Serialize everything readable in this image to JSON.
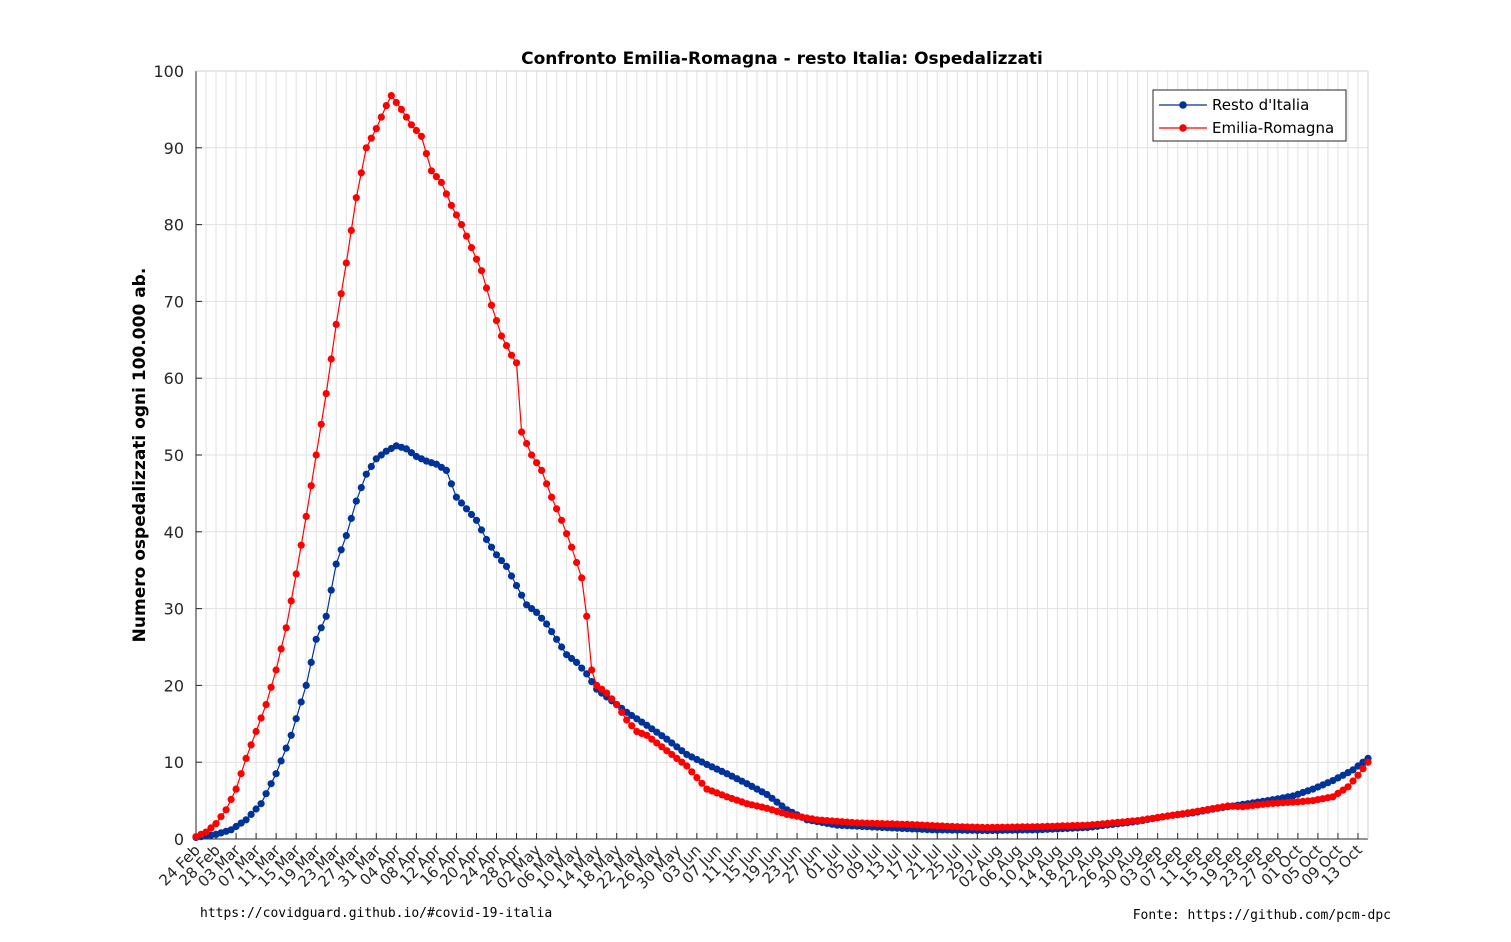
{
  "chart_data": {
    "type": "line",
    "title": "Confronto Emilia-Romagna - resto Italia: Ospedalizzati",
    "xlabel": "",
    "ylabel": "Numero ospedalizzati ogni 100.000 ab.",
    "ylim": [
      0,
      100
    ],
    "yticks": [
      0,
      10,
      20,
      30,
      40,
      50,
      60,
      70,
      80,
      90,
      100
    ],
    "x_start": "2020-02-24",
    "x_end": "2020-10-15",
    "xticks": [
      "24 Feb",
      "28 Feb",
      "03 Mar",
      "07 Mar",
      "11 Mar",
      "15 Mar",
      "19 Mar",
      "23 Mar",
      "27 Mar",
      "31 Mar",
      "04 Apr",
      "08 Apr",
      "12 Apr",
      "16 Apr",
      "20 Apr",
      "24 Apr",
      "28 Apr",
      "02 May",
      "06 May",
      "10 May",
      "14 May",
      "18 May",
      "22 May",
      "26 May",
      "30 May",
      "03 Jun",
      "07 Jun",
      "11 Jun",
      "15 Jun",
      "19 Jun",
      "23 Jun",
      "27 Jun",
      "01 Jul",
      "05 Jul",
      "09 Jul",
      "13 Jul",
      "17 Jul",
      "21 Jul",
      "25 Jul",
      "29 Jul",
      "02 Aug",
      "06 Aug",
      "10 Aug",
      "14 Aug",
      "18 Aug",
      "22 Aug",
      "26 Aug",
      "30 Aug",
      "03 Sep",
      "07 Sep",
      "11 Sep",
      "15 Sep",
      "19 Sep",
      "23 Sep",
      "27 Sep",
      "01 Oct",
      "05 Oct",
      "09 Oct",
      "13 Oct"
    ],
    "grid": true,
    "legend_position": "top-right",
    "series": [
      {
        "name": "Resto d'Italia",
        "color": "#003399",
        "anchors": [
          [
            "2020-02-24",
            0.2
          ],
          [
            "2020-02-28",
            0.6
          ],
          [
            "2020-03-02",
            1.2
          ],
          [
            "2020-03-05",
            2.5
          ],
          [
            "2020-03-08",
            4.6
          ],
          [
            "2020-03-11",
            8.5
          ],
          [
            "2020-03-14",
            13.5
          ],
          [
            "2020-03-17",
            20
          ],
          [
            "2020-03-19",
            26
          ],
          [
            "2020-03-21",
            29
          ],
          [
            "2020-03-23",
            35.8
          ],
          [
            "2020-03-25",
            39.5
          ],
          [
            "2020-03-27",
            44
          ],
          [
            "2020-03-29",
            47.5
          ],
          [
            "2020-03-31",
            49.5
          ],
          [
            "2020-04-02",
            50.5
          ],
          [
            "2020-04-04",
            51.2
          ],
          [
            "2020-04-06",
            50.8
          ],
          [
            "2020-04-08",
            49.8
          ],
          [
            "2020-04-10",
            49.2
          ],
          [
            "2020-04-12",
            48.8
          ],
          [
            "2020-04-14",
            48
          ],
          [
            "2020-04-16",
            44.5
          ],
          [
            "2020-04-18",
            43
          ],
          [
            "2020-04-20",
            41.5
          ],
          [
            "2020-04-22",
            39
          ],
          [
            "2020-04-24",
            37
          ],
          [
            "2020-04-26",
            35.5
          ],
          [
            "2020-04-28",
            33
          ],
          [
            "2020-04-30",
            30.5
          ],
          [
            "2020-05-02",
            29.5
          ],
          [
            "2020-05-04",
            28
          ],
          [
            "2020-05-06",
            26
          ],
          [
            "2020-05-08",
            24
          ],
          [
            "2020-05-10",
            23
          ],
          [
            "2020-05-12",
            21.5
          ],
          [
            "2020-05-14",
            19.5
          ],
          [
            "2020-05-17",
            18
          ],
          [
            "2020-05-20",
            16.5
          ],
          [
            "2020-05-24",
            14.8
          ],
          [
            "2020-05-28",
            13
          ],
          [
            "2020-06-01",
            11
          ],
          [
            "2020-06-05",
            9.7
          ],
          [
            "2020-06-09",
            8.5
          ],
          [
            "2020-06-13",
            7.2
          ],
          [
            "2020-06-17",
            5.8
          ],
          [
            "2020-06-21",
            3.8
          ],
          [
            "2020-06-25",
            2.5
          ],
          [
            "2020-07-01",
            1.8
          ],
          [
            "2020-07-10",
            1.5
          ],
          [
            "2020-07-20",
            1.2
          ],
          [
            "2020-07-31",
            1.1
          ],
          [
            "2020-08-10",
            1.2
          ],
          [
            "2020-08-20",
            1.5
          ],
          [
            "2020-08-30",
            2.3
          ],
          [
            "2020-09-05",
            3
          ],
          [
            "2020-09-10",
            3.4
          ],
          [
            "2020-09-15",
            4
          ],
          [
            "2020-09-20",
            4.5
          ],
          [
            "2020-09-25",
            5
          ],
          [
            "2020-09-30",
            5.6
          ],
          [
            "2020-10-04",
            6.5
          ],
          [
            "2020-10-08",
            7.6
          ],
          [
            "2020-10-12",
            9
          ],
          [
            "2020-10-15",
            10.5
          ]
        ]
      },
      {
        "name": "Emilia-Romagna",
        "color": "#ff0000",
        "anchors": [
          [
            "2020-02-24",
            0.3
          ],
          [
            "2020-02-26",
            0.9
          ],
          [
            "2020-02-28",
            2
          ],
          [
            "2020-03-01",
            3.8
          ],
          [
            "2020-03-03",
            6.5
          ],
          [
            "2020-03-05",
            10.5
          ],
          [
            "2020-03-07",
            14
          ],
          [
            "2020-03-09",
            17.5
          ],
          [
            "2020-03-11",
            22
          ],
          [
            "2020-03-13",
            27.5
          ],
          [
            "2020-03-15",
            34.5
          ],
          [
            "2020-03-17",
            42
          ],
          [
            "2020-03-19",
            50
          ],
          [
            "2020-03-21",
            58
          ],
          [
            "2020-03-23",
            67
          ],
          [
            "2020-03-25",
            75
          ],
          [
            "2020-03-27",
            83.5
          ],
          [
            "2020-03-29",
            90
          ],
          [
            "2020-03-31",
            92.5
          ],
          [
            "2020-04-02",
            95.5
          ],
          [
            "2020-04-03",
            96.8
          ],
          [
            "2020-04-05",
            95
          ],
          [
            "2020-04-07",
            93
          ],
          [
            "2020-04-09",
            91.5
          ],
          [
            "2020-04-11",
            87
          ],
          [
            "2020-04-13",
            85.5
          ],
          [
            "2020-04-15",
            82.5
          ],
          [
            "2020-04-17",
            80
          ],
          [
            "2020-04-19",
            77
          ],
          [
            "2020-04-21",
            74
          ],
          [
            "2020-04-23",
            69.5
          ],
          [
            "2020-04-25",
            65.5
          ],
          [
            "2020-04-27",
            63
          ],
          [
            "2020-04-28",
            62
          ],
          [
            "2020-04-29",
            53
          ],
          [
            "2020-05-01",
            50
          ],
          [
            "2020-05-03",
            48
          ],
          [
            "2020-05-05",
            44.5
          ],
          [
            "2020-05-07",
            41.5
          ],
          [
            "2020-05-09",
            38
          ],
          [
            "2020-05-11",
            34
          ],
          [
            "2020-05-12",
            29
          ],
          [
            "2020-05-13",
            22
          ],
          [
            "2020-05-14",
            20
          ],
          [
            "2020-05-16",
            19
          ],
          [
            "2020-05-18",
            17.5
          ],
          [
            "2020-05-20",
            15.5
          ],
          [
            "2020-05-22",
            14
          ],
          [
            "2020-05-24",
            13.5
          ],
          [
            "2020-05-28",
            11.5
          ],
          [
            "2020-06-01",
            9.5
          ],
          [
            "2020-06-03",
            8
          ],
          [
            "2020-06-05",
            6.5
          ],
          [
            "2020-06-09",
            5.5
          ],
          [
            "2020-06-13",
            4.6
          ],
          [
            "2020-06-17",
            4
          ],
          [
            "2020-06-21",
            3.2
          ],
          [
            "2020-06-27",
            2.5
          ],
          [
            "2020-07-05",
            2.1
          ],
          [
            "2020-07-15",
            1.9
          ],
          [
            "2020-07-25",
            1.6
          ],
          [
            "2020-07-31",
            1.5
          ],
          [
            "2020-08-10",
            1.6
          ],
          [
            "2020-08-20",
            1.8
          ],
          [
            "2020-08-30",
            2.4
          ],
          [
            "2020-09-05",
            3
          ],
          [
            "2020-09-10",
            3.5
          ],
          [
            "2020-09-17",
            4.3
          ],
          [
            "2020-09-20",
            4.2
          ],
          [
            "2020-09-25",
            4.6
          ],
          [
            "2020-09-30",
            4.8
          ],
          [
            "2020-10-04",
            5
          ],
          [
            "2020-10-08",
            5.5
          ],
          [
            "2020-10-11",
            6.8
          ],
          [
            "2020-10-13",
            8.3
          ],
          [
            "2020-10-15",
            10
          ]
        ]
      }
    ]
  },
  "footer": {
    "left": "https://covidguard.github.io/#covid-19-italia",
    "right": "Fonte: https://github.com/pcm-dpc"
  }
}
